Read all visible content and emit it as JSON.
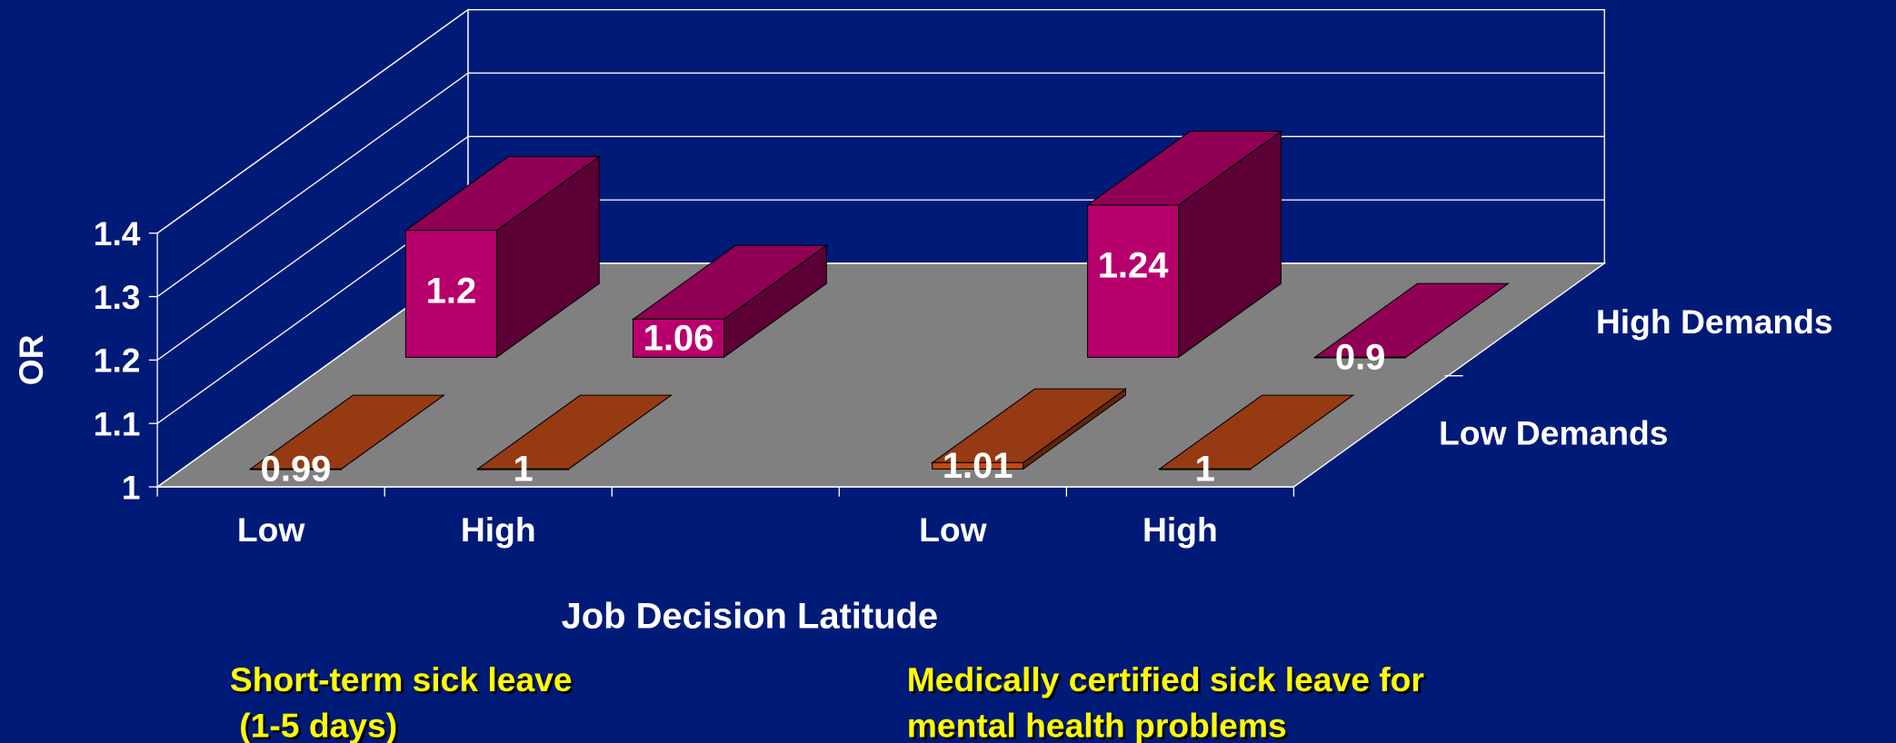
{
  "chart_data": {
    "type": "bar3d",
    "ylabel": "OR",
    "xlabel": "Job Decision Latitude",
    "categories": [
      "Low",
      "High",
      null,
      "Low",
      "High"
    ],
    "series": [
      {
        "name": "Low Demands",
        "color": "#c04a18",
        "values": [
          0.99,
          1,
          null,
          1.01,
          1
        ]
      },
      {
        "name": "High Demands",
        "color": "#b8006c",
        "values": [
          1.2,
          1.06,
          null,
          1.24,
          0.9
        ]
      }
    ],
    "ylim": [
      1,
      1.4
    ],
    "yticks": [
      1,
      1.1,
      1.2,
      1.3,
      1.4
    ],
    "grid": true,
    "group_labels": [
      [
        "Short-term sick leave",
        " (1-5 days)"
      ],
      [
        "Medically certified sick leave for",
        "mental health problems"
      ]
    ]
  }
}
